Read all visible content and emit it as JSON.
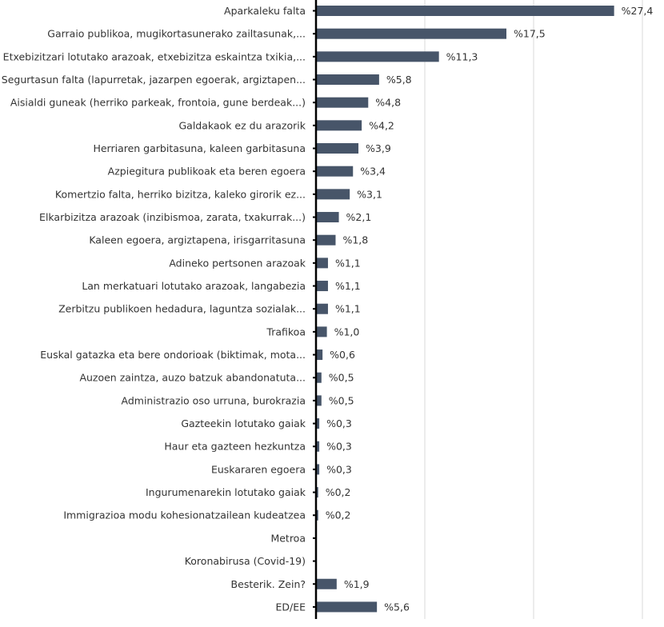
{
  "chart_data": {
    "type": "bar",
    "orientation": "horizontal",
    "categories": [
      "Aparkaleku falta",
      "Garraio publikoa, mugikortasunerako zailtasunak,...",
      "Etxebizitzari lotutako arazoak, etxebizitza eskaintza txikia,...",
      "Segurtasun falta (lapurretak, jazarpen egoerak, argiztapen...",
      "Aisialdi guneak (herriko parkeak, frontoia, gune berdeak...)",
      "Galdakaok ez du arazorik",
      "Herriaren garbitasuna, kaleen garbitasuna",
      "Azpiegitura publikoak eta beren egoera",
      "Komertzio falta, herriko bizitza, kaleko girorik ez...",
      "Elkarbizitza arazoak (inzibismoa, zarata, txakurrak...)",
      "Kaleen egoera, argiztapena, irisgarritasuna",
      "Adineko pertsonen arazoak",
      "Lan merkatuari lotutako arazoak, langabezia",
      "Zerbitzu publikoen hedadura, laguntza sozialak...",
      "Trafikoa",
      "Euskal gatazka eta bere ondorioak (biktimak, mota...",
      "Auzoen zaintza, auzo batzuk abandonatuta...",
      "Administrazio oso urruna, burokrazia",
      "Gazteekin lotutako gaiak",
      "Haur eta gazteen hezkuntza",
      "Euskararen egoera",
      "Ingurumenarekin lotutako gaiak",
      "Immigrazioa modu kohesionatzailean kudeatzea",
      "Metroa",
      "Koronabirusa (Covid-19)",
      "Besterik. Zein?",
      "ED/EE"
    ],
    "values": [
      27.4,
      17.5,
      11.3,
      5.8,
      4.8,
      4.2,
      3.9,
      3.4,
      3.1,
      2.1,
      1.8,
      1.1,
      1.1,
      1.1,
      1.0,
      0.6,
      0.5,
      0.5,
      0.3,
      0.3,
      0.3,
      0.2,
      0.2,
      null,
      null,
      1.9,
      5.6
    ],
    "value_labels": [
      "%27,4",
      "%17,5",
      "%11,3",
      "%5,8",
      "%4,8",
      "%4,2",
      "%3,9",
      "%3,4",
      "%3,1",
      "%2,1",
      "%1,8",
      "%1,1",
      "%1,1",
      "%1,1",
      "%1,0",
      "%0,6",
      "%0,5",
      "%0,5",
      "%0,3",
      "%0,3",
      "%0,3",
      "%0,2",
      "%0,2",
      "",
      "",
      "%1,9",
      "%5,6"
    ],
    "xlim": [
      0,
      30
    ],
    "grid": true,
    "bar_color": "#475569",
    "title": "",
    "xlabel": "",
    "ylabel": ""
  }
}
